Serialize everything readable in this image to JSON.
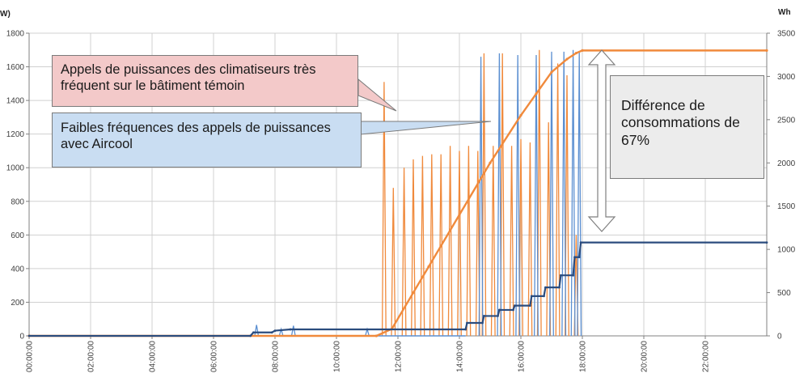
{
  "chart_data": {
    "type": "line",
    "y_left": {
      "unit": "W)",
      "min": 0,
      "max": 1800,
      "ticks": [
        "0",
        "200",
        "400",
        "600",
        "800",
        "1000",
        "1200",
        "1400",
        "1600",
        "1800"
      ]
    },
    "y_right": {
      "unit": "Wh",
      "min": 0,
      "max": 3500,
      "ticks": [
        "0",
        "500",
        "1000",
        "1500",
        "2000",
        "2500",
        "3000",
        "3500"
      ]
    },
    "x": {
      "min_hours": 0,
      "max_hours": 24,
      "ticks": [
        "00:00:00",
        "02:00:00",
        "04:00:00",
        "06:00:00",
        "08:00:00",
        "10:00:00",
        "12:00:00",
        "14:00:00",
        "16:00:00",
        "18:00:00",
        "20:00:00",
        "22:00:00"
      ]
    },
    "grid": true,
    "series": [
      {
        "key": "power_reference",
        "color": "#f08a3c",
        "axis": "left",
        "style": "spikes",
        "baseline_hours": [
          0,
          11
        ],
        "spikes": [
          [
            11.55,
            1510
          ],
          [
            11.85,
            880
          ],
          [
            12.2,
            1000
          ],
          [
            12.5,
            1050
          ],
          [
            12.8,
            1070
          ],
          [
            13.1,
            1080
          ],
          [
            13.4,
            1080
          ],
          [
            13.7,
            1130
          ],
          [
            14.0,
            1100
          ],
          [
            14.3,
            1130
          ],
          [
            14.6,
            1100
          ],
          [
            14.8,
            1680
          ],
          [
            15.1,
            1130
          ],
          [
            15.4,
            1680
          ],
          [
            15.7,
            1130
          ],
          [
            16.0,
            1170
          ],
          [
            16.3,
            1150
          ],
          [
            16.6,
            1700
          ],
          [
            16.9,
            1270
          ],
          [
            17.2,
            1620
          ],
          [
            17.5,
            1550
          ],
          [
            17.8,
            600
          ]
        ]
      },
      {
        "key": "power_aircool",
        "color": "#5b8fd1",
        "axis": "left",
        "style": "spikes",
        "baseline_hours": [
          0,
          14.2
        ],
        "spikes": [
          [
            7.4,
            65
          ],
          [
            8.2,
            40
          ],
          [
            8.6,
            60
          ],
          [
            11.0,
            40
          ],
          [
            14.7,
            1660
          ],
          [
            15.3,
            1680
          ],
          [
            15.9,
            1670
          ],
          [
            16.5,
            1670
          ],
          [
            17.0,
            1690
          ],
          [
            17.4,
            1690
          ],
          [
            17.7,
            1700
          ],
          [
            17.9,
            1690
          ]
        ]
      },
      {
        "key": "energy_reference",
        "color": "#f08a3c",
        "axis": "right",
        "style": "line",
        "points": [
          [
            0,
            0
          ],
          [
            11.3,
            0
          ],
          [
            11.8,
            80
          ],
          [
            12.5,
            500
          ],
          [
            13.0,
            800
          ],
          [
            14.0,
            1400
          ],
          [
            15.0,
            2000
          ],
          [
            16.0,
            2550
          ],
          [
            16.5,
            2800
          ],
          [
            17.0,
            3050
          ],
          [
            17.5,
            3200
          ],
          [
            17.8,
            3270
          ],
          [
            18.0,
            3300
          ],
          [
            24,
            3300
          ]
        ]
      },
      {
        "key": "energy_aircool",
        "color": "#2b4c7e",
        "axis": "right",
        "style": "steps",
        "points": [
          [
            0,
            0
          ],
          [
            7.2,
            0
          ],
          [
            7.3,
            40
          ],
          [
            7.9,
            40
          ],
          [
            8.0,
            60
          ],
          [
            8.5,
            75
          ],
          [
            14.2,
            75
          ],
          [
            14.25,
            150
          ],
          [
            14.75,
            150
          ],
          [
            14.8,
            230
          ],
          [
            15.25,
            230
          ],
          [
            15.3,
            300
          ],
          [
            15.75,
            300
          ],
          [
            15.8,
            350
          ],
          [
            16.3,
            350
          ],
          [
            16.35,
            460
          ],
          [
            16.75,
            460
          ],
          [
            16.8,
            560
          ],
          [
            17.25,
            560
          ],
          [
            17.3,
            700
          ],
          [
            17.7,
            700
          ],
          [
            17.75,
            910
          ],
          [
            17.9,
            910
          ],
          [
            17.95,
            1080
          ],
          [
            24,
            1080
          ]
        ]
      }
    ]
  },
  "callouts": {
    "reference": "Appels de puissances des climatiseurs très fréquent sur le bâtiment témoin",
    "aircool": "Faibles fréquences des appels de puissances avec Aircool",
    "difference": "Différence de consommations de 67%"
  },
  "colors": {
    "grid": "#d0d0d0",
    "axis": "#808080",
    "callout_pink": "#f3c9c9",
    "callout_blue": "#c9ddf2",
    "callout_grey": "#ececec"
  }
}
